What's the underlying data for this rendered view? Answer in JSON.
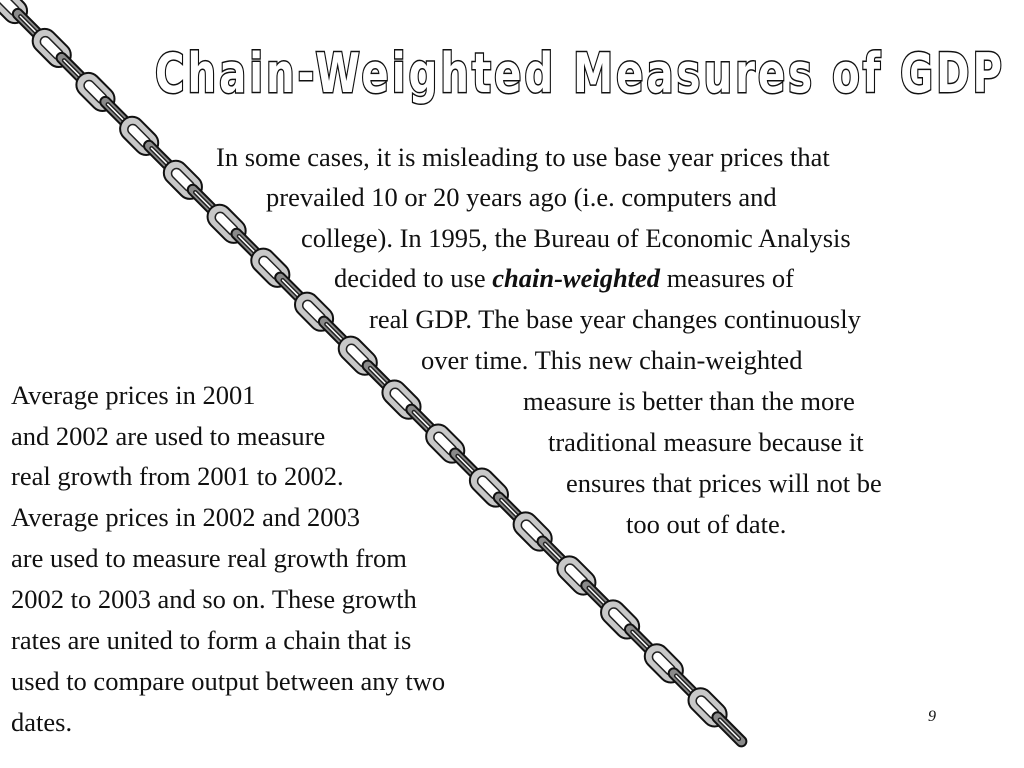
{
  "slide": {
    "title": "Chain-Weighted Measures of GDP",
    "right_text": {
      "line1": "In some cases, it is misleading to use base year prices that",
      "line2": "prevailed 10 or 20 years ago (i.e. computers and",
      "line3": "college). In 1995, the Bureau of Economic Analysis",
      "line4_before": "decided to use ",
      "line4_emphasis": "chain-weighted",
      "line4_after": " measures of",
      "line5": "real GDP.  The base year changes continuously",
      "line6": "over time.  This new chain-weighted",
      "line7": "measure is better than the more",
      "line8": "traditional measure because it",
      "line9": "ensures that prices will not be",
      "line10": "too out of date."
    },
    "left_text": {
      "line1": "Average prices in 2001",
      "line2": "and 2002 are used to measure",
      "line3": "real growth from 2001 to 2002.",
      "line4": "Average prices in 2002 and 2003",
      "line5": "are used to measure real growth from",
      "line6": "2002 to 2003 and so on.  These growth",
      "line7": "rates are united to form a chain that is",
      "line8": "used to compare output between any two",
      "line9": "dates."
    },
    "page_number": "9"
  }
}
